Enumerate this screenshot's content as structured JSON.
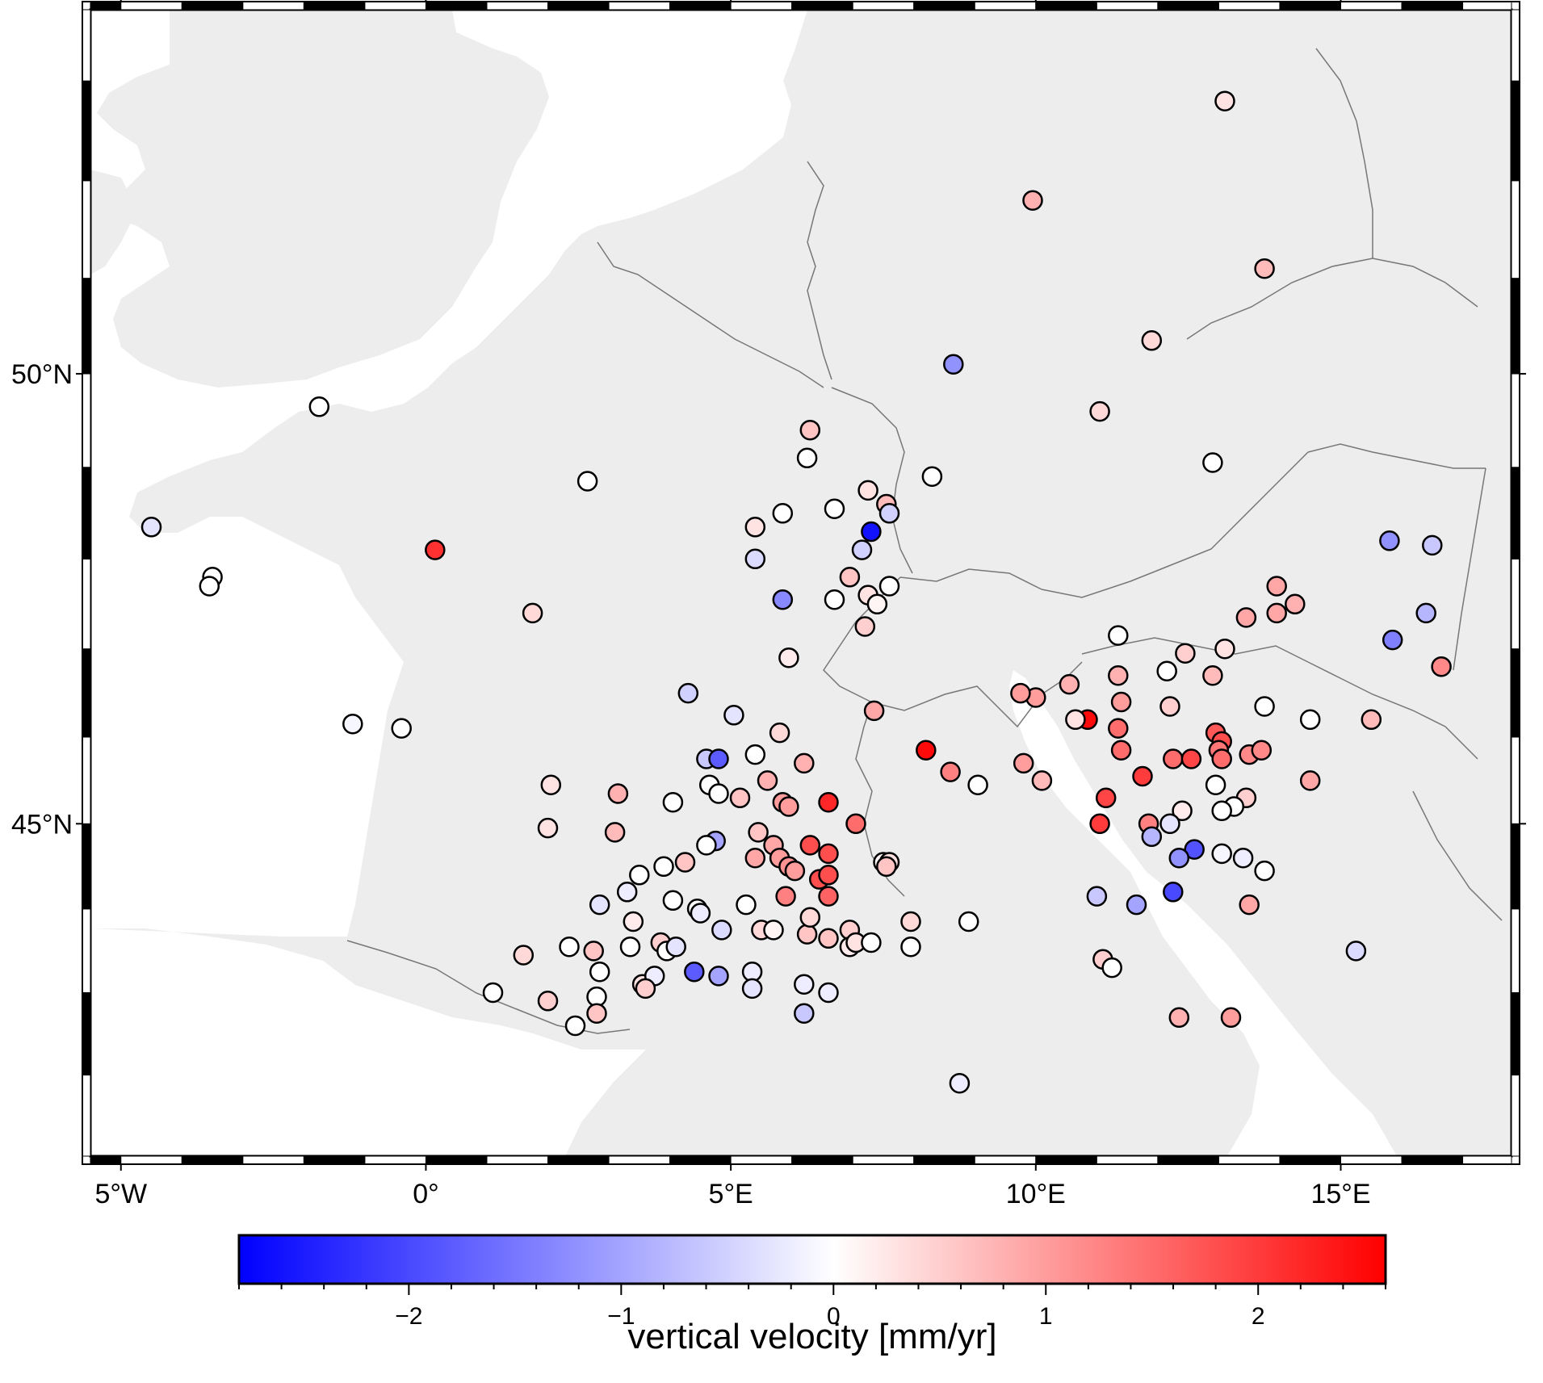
{
  "map": {
    "region": {
      "lon_min": -5.5,
      "lon_max": 17.8,
      "lat_min": 41.0,
      "lat_max": 53.7
    },
    "projection": "mercator",
    "land_color": "#ededed",
    "water_color": "#ffffff",
    "border_color": "#777777",
    "frame_style": "fancy"
  },
  "axes": {
    "lon_ticks": [
      {
        "value": -5,
        "label": "5°W"
      },
      {
        "value": 0,
        "label": "0°"
      },
      {
        "value": 5,
        "label": "5°E"
      },
      {
        "value": 10,
        "label": "10°E"
      },
      {
        "value": 15,
        "label": "15°E"
      }
    ],
    "lat_ticks": [
      {
        "value": 50,
        "label": "50°N"
      },
      {
        "value": 45,
        "label": "45°N"
      }
    ]
  },
  "colorbar": {
    "title": "vertical velocity [mm/yr]",
    "min": -2.8,
    "max": 2.6,
    "colormap": "polar",
    "color_min": "#0000ff",
    "color_mid": "#ffffff",
    "color_max": "#ff0000",
    "ticks": [
      {
        "value": -2,
        "label": "−2"
      },
      {
        "value": -1,
        "label": "−1"
      },
      {
        "value": 0,
        "label": "0"
      },
      {
        "value": 1,
        "label": "1"
      },
      {
        "value": 2,
        "label": "2"
      }
    ]
  },
  "chart_data": {
    "type": "scatter",
    "xlabel": "",
    "ylabel": "",
    "colorbar_label": "vertical velocity [mm/yr]",
    "points": [
      {
        "lon": 13.1,
        "lat": 52.8,
        "v": 0.3
      },
      {
        "lon": 9.95,
        "lat": 51.8,
        "v": 0.8
      },
      {
        "lon": 13.75,
        "lat": 51.1,
        "v": 0.7
      },
      {
        "lon": 11.9,
        "lat": 50.35,
        "v": 0.4
      },
      {
        "lon": 8.65,
        "lat": 50.1,
        "v": -1.2
      },
      {
        "lon": 11.05,
        "lat": 49.6,
        "v": 0.4
      },
      {
        "lon": 6.3,
        "lat": 49.4,
        "v": 0.6
      },
      {
        "lon": 6.25,
        "lat": 49.1,
        "v": 0.0
      },
      {
        "lon": 12.9,
        "lat": 49.05,
        "v": 0.0
      },
      {
        "lon": 8.3,
        "lat": 48.9,
        "v": 0.0
      },
      {
        "lon": 7.25,
        "lat": 48.75,
        "v": 0.3
      },
      {
        "lon": 7.55,
        "lat": 48.6,
        "v": 0.7
      },
      {
        "lon": 6.7,
        "lat": 48.55,
        "v": 0.0
      },
      {
        "lon": 7.6,
        "lat": 48.5,
        "v": -0.5
      },
      {
        "lon": 5.85,
        "lat": 48.5,
        "v": 0.0
      },
      {
        "lon": 5.4,
        "lat": 48.35,
        "v": 0.3
      },
      {
        "lon": 7.3,
        "lat": 48.3,
        "v": -2.6
      },
      {
        "lon": 7.15,
        "lat": 48.1,
        "v": -0.5
      },
      {
        "lon": 5.4,
        "lat": 48.0,
        "v": -0.4
      },
      {
        "lon": 6.95,
        "lat": 47.8,
        "v": 0.6
      },
      {
        "lon": 7.6,
        "lat": 47.7,
        "v": 0.0
      },
      {
        "lon": 7.25,
        "lat": 47.6,
        "v": 0.3
      },
      {
        "lon": 7.4,
        "lat": 47.5,
        "v": 0.1
      },
      {
        "lon": 6.7,
        "lat": 47.55,
        "v": 0.0
      },
      {
        "lon": 5.85,
        "lat": 47.55,
        "v": -1.3
      },
      {
        "lon": 7.2,
        "lat": 47.25,
        "v": 0.5
      },
      {
        "lon": 5.95,
        "lat": 46.9,
        "v": 0.2
      },
      {
        "lon": 7.35,
        "lat": 46.3,
        "v": 0.9
      },
      {
        "lon": 4.3,
        "lat": 46.5,
        "v": -0.5
      },
      {
        "lon": 5.05,
        "lat": 46.25,
        "v": -0.3
      },
      {
        "lon": 5.8,
        "lat": 46.05,
        "v": 0.4
      },
      {
        "lon": 6.2,
        "lat": 45.7,
        "v": 0.8
      },
      {
        "lon": 8.2,
        "lat": 45.85,
        "v": 2.5
      },
      {
        "lon": 8.6,
        "lat": 45.6,
        "v": 1.3
      },
      {
        "lon": 9.8,
        "lat": 45.7,
        "v": 1.0
      },
      {
        "lon": 10.1,
        "lat": 45.5,
        "v": 0.7
      },
      {
        "lon": 9.05,
        "lat": 45.45,
        "v": 0.0
      },
      {
        "lon": 4.6,
        "lat": 45.75,
        "v": -0.6
      },
      {
        "lon": 4.8,
        "lat": 45.75,
        "v": -1.8
      },
      {
        "lon": 5.4,
        "lat": 45.8,
        "v": 0.0
      },
      {
        "lon": 4.65,
        "lat": 45.45,
        "v": 0.0
      },
      {
        "lon": 4.8,
        "lat": 45.35,
        "v": 0.0
      },
      {
        "lon": 5.15,
        "lat": 45.3,
        "v": 0.6
      },
      {
        "lon": 5.6,
        "lat": 45.5,
        "v": 0.8
      },
      {
        "lon": 5.85,
        "lat": 45.25,
        "v": 1.0
      },
      {
        "lon": 5.95,
        "lat": 45.2,
        "v": 1.0
      },
      {
        "lon": 6.6,
        "lat": 45.25,
        "v": 2.2
      },
      {
        "lon": 7.05,
        "lat": 45.0,
        "v": 1.5
      },
      {
        "lon": 3.15,
        "lat": 45.35,
        "v": 0.8
      },
      {
        "lon": 4.05,
        "lat": 45.25,
        "v": 0.0
      },
      {
        "lon": 2.0,
        "lat": 44.95,
        "v": 0.3
      },
      {
        "lon": 5.45,
        "lat": 44.9,
        "v": 0.6
      },
      {
        "lon": 5.7,
        "lat": 44.75,
        "v": 0.9
      },
      {
        "lon": 5.4,
        "lat": 44.6,
        "v": 0.9
      },
      {
        "lon": 5.8,
        "lat": 44.6,
        "v": 1.0
      },
      {
        "lon": 5.95,
        "lat": 44.5,
        "v": 1.1
      },
      {
        "lon": 6.05,
        "lat": 44.45,
        "v": 1.0
      },
      {
        "lon": 6.3,
        "lat": 44.75,
        "v": 1.8
      },
      {
        "lon": 6.6,
        "lat": 44.65,
        "v": 1.8
      },
      {
        "lon": 6.45,
        "lat": 44.35,
        "v": 1.8
      },
      {
        "lon": 6.6,
        "lat": 44.4,
        "v": 1.8
      },
      {
        "lon": 6.6,
        "lat": 44.15,
        "v": 1.6
      },
      {
        "lon": 5.9,
        "lat": 44.15,
        "v": 1.3
      },
      {
        "lon": 7.5,
        "lat": 44.55,
        "v": 0.1
      },
      {
        "lon": 7.6,
        "lat": 44.55,
        "v": 0.3
      },
      {
        "lon": 7.55,
        "lat": 44.5,
        "v": 0.6
      },
      {
        "lon": 4.75,
        "lat": 44.8,
        "v": -1.0
      },
      {
        "lon": 4.6,
        "lat": 44.75,
        "v": 0.0
      },
      {
        "lon": 4.25,
        "lat": 44.55,
        "v": 0.6
      },
      {
        "lon": 3.9,
        "lat": 44.5,
        "v": 0.0
      },
      {
        "lon": 3.3,
        "lat": 44.2,
        "v": -0.2
      },
      {
        "lon": 6.95,
        "lat": 43.75,
        "v": 0.5
      },
      {
        "lon": 7.95,
        "lat": 43.85,
        "v": 0.4
      },
      {
        "lon": 8.9,
        "lat": 43.85,
        "v": 0.0
      },
      {
        "lon": 7.95,
        "lat": 43.55,
        "v": 0.0
      },
      {
        "lon": 11.0,
        "lat": 44.15,
        "v": -0.6
      },
      {
        "lon": 11.65,
        "lat": 44.05,
        "v": -1.0
      },
      {
        "lon": 12.25,
        "lat": 44.2,
        "v": -2.0
      },
      {
        "lon": 11.1,
        "lat": 43.4,
        "v": 0.5
      },
      {
        "lon": 11.25,
        "lat": 43.3,
        "v": 0.0
      },
      {
        "lon": 12.35,
        "lat": 42.7,
        "v": 0.8
      },
      {
        "lon": 13.2,
        "lat": 42.7,
        "v": 1.0
      },
      {
        "lon": 15.25,
        "lat": 43.5,
        "v": -0.4
      },
      {
        "lon": 8.75,
        "lat": 41.9,
        "v": -0.2
      },
      {
        "lon": 10.85,
        "lat": 46.2,
        "v": 2.5
      },
      {
        "lon": 11.35,
        "lat": 46.1,
        "v": 1.5
      },
      {
        "lon": 11.4,
        "lat": 45.85,
        "v": 1.5
      },
      {
        "lon": 11.75,
        "lat": 45.55,
        "v": 2.0
      },
      {
        "lon": 11.15,
        "lat": 45.3,
        "v": 1.9
      },
      {
        "lon": 11.05,
        "lat": 45.0,
        "v": 2.0
      },
      {
        "lon": 11.85,
        "lat": 45.0,
        "v": 1.3
      },
      {
        "lon": 12.25,
        "lat": 45.75,
        "v": 1.5
      },
      {
        "lon": 12.55,
        "lat": 45.75,
        "v": 1.9
      },
      {
        "lon": 12.95,
        "lat": 46.05,
        "v": 1.7
      },
      {
        "lon": 13.05,
        "lat": 45.95,
        "v": 1.8
      },
      {
        "lon": 13.0,
        "lat": 45.85,
        "v": 1.4
      },
      {
        "lon": 13.05,
        "lat": 45.75,
        "v": 1.5
      },
      {
        "lon": 13.5,
        "lat": 45.8,
        "v": 1.2
      },
      {
        "lon": 13.7,
        "lat": 45.85,
        "v": 1.2
      },
      {
        "lon": 12.95,
        "lat": 45.45,
        "v": 0.0
      },
      {
        "lon": 13.45,
        "lat": 45.3,
        "v": 0.5
      },
      {
        "lon": 13.25,
        "lat": 45.2,
        "v": 0.0
      },
      {
        "lon": 13.05,
        "lat": 45.15,
        "v": 0.0
      },
      {
        "lon": 12.4,
        "lat": 45.15,
        "v": 0.2
      },
      {
        "lon": 12.2,
        "lat": 45.0,
        "v": -0.3
      },
      {
        "lon": 11.9,
        "lat": 44.85,
        "v": -0.8
      },
      {
        "lon": 12.6,
        "lat": 44.7,
        "v": -1.9
      },
      {
        "lon": 12.35,
        "lat": 44.6,
        "v": -1.2
      },
      {
        "lon": 13.05,
        "lat": 44.65,
        "v": -0.1
      },
      {
        "lon": 13.4,
        "lat": 44.6,
        "v": -0.2
      },
      {
        "lon": 13.75,
        "lat": 44.45,
        "v": 0.0
      },
      {
        "lon": 14.5,
        "lat": 45.5,
        "v": 0.9
      },
      {
        "lon": 14.5,
        "lat": 46.2,
        "v": 0.0
      },
      {
        "lon": 13.5,
        "lat": 44.05,
        "v": 0.9
      },
      {
        "lon": 14.25,
        "lat": 47.5,
        "v": 0.8
      },
      {
        "lon": 13.95,
        "lat": 47.4,
        "v": 0.9
      },
      {
        "lon": 13.45,
        "lat": 47.35,
        "v": 0.9
      },
      {
        "lon": 13.1,
        "lat": 47.0,
        "v": 0.3
      },
      {
        "lon": 12.45,
        "lat": 46.95,
        "v": 0.5
      },
      {
        "lon": 12.9,
        "lat": 46.7,
        "v": 0.7
      },
      {
        "lon": 12.15,
        "lat": 46.75,
        "v": 0.0
      },
      {
        "lon": 11.35,
        "lat": 46.7,
        "v": 0.8
      },
      {
        "lon": 10.55,
        "lat": 46.6,
        "v": 0.8
      },
      {
        "lon": 10.0,
        "lat": 46.45,
        "v": 1.0
      },
      {
        "lon": 9.75,
        "lat": 46.5,
        "v": 1.0
      },
      {
        "lon": 11.4,
        "lat": 46.4,
        "v": 1.0
      },
      {
        "lon": 12.2,
        "lat": 46.35,
        "v": 0.5
      },
      {
        "lon": 13.75,
        "lat": 46.35,
        "v": 0.0
      },
      {
        "lon": 10.65,
        "lat": 46.2,
        "v": 0.3
      },
      {
        "lon": 11.35,
        "lat": 47.15,
        "v": 0.0
      },
      {
        "lon": 16.4,
        "lat": 47.4,
        "v": -0.8
      },
      {
        "lon": 15.85,
        "lat": 47.1,
        "v": -1.4
      },
      {
        "lon": 16.65,
        "lat": 46.8,
        "v": 1.2
      },
      {
        "lon": 15.5,
        "lat": 46.2,
        "v": 0.7
      },
      {
        "lon": 13.95,
        "lat": 47.7,
        "v": 0.9
      },
      {
        "lon": 16.5,
        "lat": 48.15,
        "v": -0.6
      },
      {
        "lon": 15.8,
        "lat": 48.2,
        "v": -1.2
      },
      {
        "lon": 1.75,
        "lat": 47.4,
        "v": 0.4
      },
      {
        "lon": 0.15,
        "lat": 48.1,
        "v": 2.1
      },
      {
        "lon": 2.65,
        "lat": 48.85,
        "v": 0.0
      },
      {
        "lon": -1.75,
        "lat": 49.65,
        "v": 0.0
      },
      {
        "lon": -4.5,
        "lat": 48.35,
        "v": -0.3
      },
      {
        "lon": -3.5,
        "lat": 47.8,
        "v": 0.0
      },
      {
        "lon": -3.55,
        "lat": 47.7,
        "v": 0.0
      },
      {
        "lon": -1.2,
        "lat": 46.15,
        "v": -0.1
      },
      {
        "lon": -0.4,
        "lat": 46.1,
        "v": 0.0
      },
      {
        "lon": 2.05,
        "lat": 45.45,
        "v": 0.3
      },
      {
        "lon": 3.1,
        "lat": 44.9,
        "v": 0.7
      },
      {
        "lon": 3.5,
        "lat": 44.4,
        "v": 0.0
      },
      {
        "lon": 2.85,
        "lat": 44.05,
        "v": -0.3
      },
      {
        "lon": 3.4,
        "lat": 43.85,
        "v": 0.2
      },
      {
        "lon": 4.05,
        "lat": 44.1,
        "v": 0.0
      },
      {
        "lon": 4.45,
        "lat": 44.0,
        "v": 0.0
      },
      {
        "lon": 4.5,
        "lat": 43.95,
        "v": -0.2
      },
      {
        "lon": 5.25,
        "lat": 44.05,
        "v": 0.0
      },
      {
        "lon": 4.85,
        "lat": 43.75,
        "v": -0.4
      },
      {
        "lon": 5.5,
        "lat": 43.75,
        "v": 0.4
      },
      {
        "lon": 5.7,
        "lat": 43.75,
        "v": 0.1
      },
      {
        "lon": 6.25,
        "lat": 43.7,
        "v": 0.6
      },
      {
        "lon": 6.6,
        "lat": 43.65,
        "v": 0.6
      },
      {
        "lon": 6.95,
        "lat": 43.55,
        "v": 0.2
      },
      {
        "lon": 7.05,
        "lat": 43.6,
        "v": 0.3
      },
      {
        "lon": 7.3,
        "lat": 43.6,
        "v": 0.0
      },
      {
        "lon": 6.3,
        "lat": 43.9,
        "v": 0.4
      },
      {
        "lon": 3.85,
        "lat": 43.6,
        "v": 0.5
      },
      {
        "lon": 3.35,
        "lat": 43.55,
        "v": 0.0
      },
      {
        "lon": 3.95,
        "lat": 43.5,
        "v": 0.0
      },
      {
        "lon": 4.1,
        "lat": 43.55,
        "v": -0.3
      },
      {
        "lon": 2.75,
        "lat": 43.5,
        "v": 0.6
      },
      {
        "lon": 2.35,
        "lat": 43.55,
        "v": 0.0
      },
      {
        "lon": 2.85,
        "lat": 43.25,
        "v": 0.0
      },
      {
        "lon": 3.55,
        "lat": 43.1,
        "v": 0.3
      },
      {
        "lon": 3.75,
        "lat": 43.2,
        "v": -0.2
      },
      {
        "lon": 4.4,
        "lat": 43.25,
        "v": -1.8
      },
      {
        "lon": 4.8,
        "lat": 43.2,
        "v": -1.0
      },
      {
        "lon": 5.35,
        "lat": 43.25,
        "v": -0.2
      },
      {
        "lon": 5.35,
        "lat": 43.05,
        "v": -0.3
      },
      {
        "lon": 6.2,
        "lat": 43.1,
        "v": -0.2
      },
      {
        "lon": 6.6,
        "lat": 43.0,
        "v": -0.2
      },
      {
        "lon": 6.2,
        "lat": 42.75,
        "v": -0.6
      },
      {
        "lon": 3.6,
        "lat": 43.05,
        "v": 0.5
      },
      {
        "lon": 2.8,
        "lat": 42.95,
        "v": 0.0
      },
      {
        "lon": 2.8,
        "lat": 42.75,
        "v": 0.6
      },
      {
        "lon": 1.6,
        "lat": 43.45,
        "v": 0.4
      },
      {
        "lon": 2.0,
        "lat": 42.9,
        "v": 0.5
      },
      {
        "lon": 1.1,
        "lat": 43.0,
        "v": 0.0
      },
      {
        "lon": 2.45,
        "lat": 42.6,
        "v": 0.0
      }
    ]
  }
}
